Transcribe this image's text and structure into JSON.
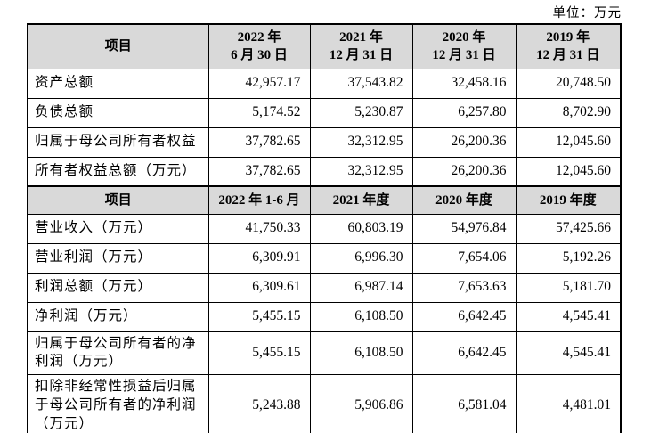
{
  "unit_label": "单位：万元",
  "balance_sheet": {
    "header": {
      "item": "项目",
      "periods": [
        {
          "line1": "2022 年",
          "line2": "6 月 30 日"
        },
        {
          "line1": "2021 年",
          "line2": "12 月 31 日"
        },
        {
          "line1": "2020 年",
          "line2": "12 月 31 日"
        },
        {
          "line1": "2019 年",
          "line2": "12 月 31 日"
        }
      ]
    },
    "rows": [
      {
        "label": "资产总额",
        "values": [
          "42,957.17",
          "37,543.82",
          "32,458.16",
          "20,748.50"
        ]
      },
      {
        "label": "负债总额",
        "values": [
          "5,174.52",
          "5,230.87",
          "6,257.80",
          "8,702.90"
        ]
      },
      {
        "label": "归属于母公司所有者权益",
        "values": [
          "37,782.65",
          "32,312.95",
          "26,200.36",
          "12,045.60"
        ]
      },
      {
        "label": "所有者权益总额（万元）",
        "values": [
          "37,782.65",
          "32,312.95",
          "26,200.36",
          "12,045.60"
        ]
      }
    ]
  },
  "income_statement": {
    "header": {
      "item": "项目",
      "periods": [
        "2022 年 1-6 月",
        "2021 年度",
        "2020 年度",
        "2019 年度"
      ]
    },
    "rows": [
      {
        "label": "营业收入（万元）",
        "values": [
          "41,750.33",
          "60,803.19",
          "54,976.84",
          "57,425.66"
        ]
      },
      {
        "label": "营业利润（万元）",
        "values": [
          "6,309.91",
          "6,996.30",
          "7,654.06",
          "5,192.26"
        ]
      },
      {
        "label": "利润总额（万元）",
        "values": [
          "6,309.61",
          "6,987.14",
          "7,653.63",
          "5,181.70"
        ]
      },
      {
        "label": "净利润（万元）",
        "values": [
          "5,455.15",
          "6,108.50",
          "6,642.45",
          "4,545.41"
        ]
      },
      {
        "label": "归属于母公司所有者的净利润（万元）",
        "values": [
          "5,455.15",
          "6,108.50",
          "6,642.45",
          "4,545.41"
        ]
      },
      {
        "label": "扣除非经常性损益后归属于母公司所有者的净利润（万元）",
        "values": [
          "5,243.88",
          "5,906.86",
          "6,581.04",
          "4,481.01"
        ]
      }
    ]
  }
}
